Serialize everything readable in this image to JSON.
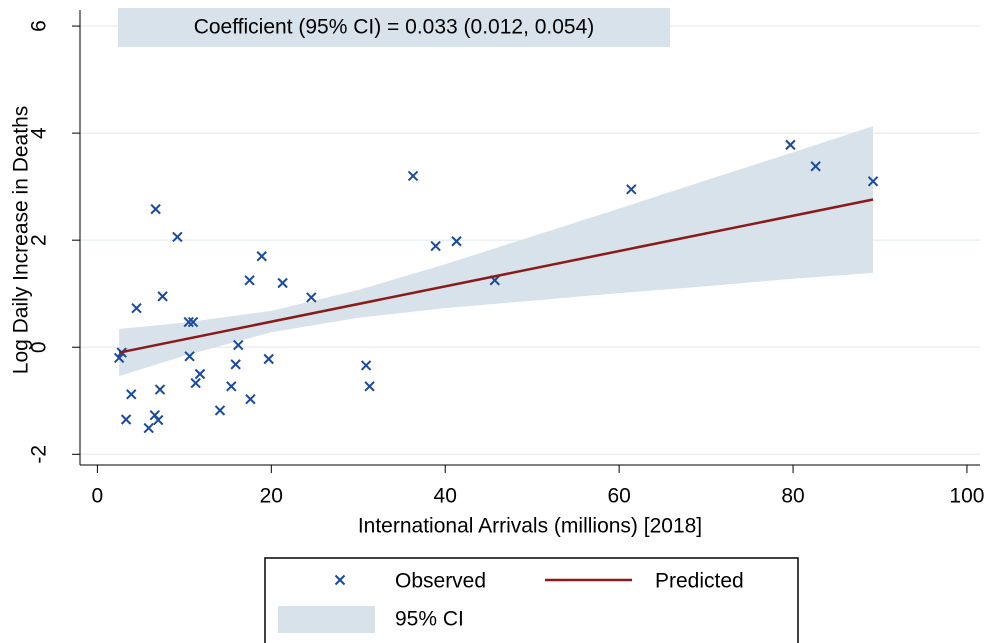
{
  "chart_data": {
    "type": "scatter",
    "annotation": "Coefficient (95% CI) = 0.033 (0.012, 0.054)",
    "xlabel": "International Arrivals (millions) [2018]",
    "ylabel": "Log Daily Increase in Deaths",
    "xlim": [
      -2,
      101.5
    ],
    "ylim": [
      -2.2,
      6.3
    ],
    "xticks": [
      0,
      20,
      40,
      60,
      80,
      100
    ],
    "yticks": [
      -2,
      0,
      2,
      4,
      6
    ],
    "grid": true,
    "series": [
      {
        "name": "Observed",
        "color": "#1a4a9c",
        "x": [
          2.5,
          2.8,
          4.5,
          3.9,
          3.3,
          5.9,
          6.6,
          7.0,
          7.2,
          6.7,
          7.5,
          9.2,
          10.5,
          11.0,
          10.6,
          11.3,
          11.8,
          14.1,
          15.4,
          15.9,
          16.2,
          17.5,
          17.6,
          18.9,
          19.7,
          21.3,
          24.6,
          30.9,
          31.3,
          36.3,
          38.9,
          41.3,
          45.7,
          61.4,
          79.7,
          82.6,
          89.2
        ],
        "values": [
          -0.2,
          -0.1,
          0.73,
          -0.88,
          -1.35,
          -1.51,
          -1.27,
          -1.36,
          -0.79,
          2.58,
          0.95,
          2.06,
          0.47,
          0.47,
          -0.17,
          -0.67,
          -0.5,
          -1.18,
          -0.73,
          -0.32,
          0.04,
          1.25,
          -0.97,
          1.7,
          -0.22,
          1.2,
          0.93,
          -0.34,
          -0.73,
          3.2,
          1.89,
          1.98,
          1.25,
          2.95,
          3.78,
          3.38,
          3.1
        ]
      },
      {
        "name": "Predicted",
        "type": "line",
        "color": "#8b1a1a",
        "x": [
          2.5,
          89.2
        ],
        "values": [
          -0.1,
          2.76
        ]
      }
    ],
    "ci": {
      "name": "95% CI",
      "color": "#d8e2ea",
      "x": [
        2.5,
        10,
        20,
        30,
        40,
        50,
        60,
        70,
        80,
        89.2
      ],
      "lower": [
        -0.54,
        -0.16,
        0.28,
        0.55,
        0.73,
        0.87,
        1.01,
        1.14,
        1.28,
        1.39
      ],
      "upper": [
        0.34,
        0.46,
        0.68,
        1.07,
        1.55,
        2.07,
        2.59,
        3.12,
        3.64,
        4.13
      ]
    }
  }
}
